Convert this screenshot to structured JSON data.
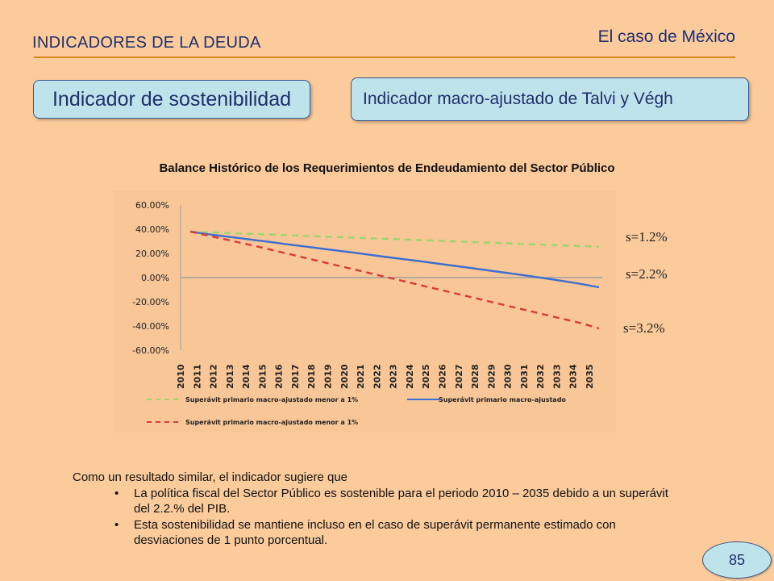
{
  "header": {
    "section_title": "INDICADORES DE LA DEUDA",
    "case_title": "El caso de México"
  },
  "pills": {
    "left": "Indicador de sostenibilidad",
    "right": "Indicador macro-ajustado de Talvi y Végh"
  },
  "chart_title": "Balance Histórico de los Requerimientos de Endeudamiento del Sector Público",
  "s_labels": {
    "top": "s=1.2%",
    "mid": "s=2.2%",
    "bottom": "s=3.2%"
  },
  "chart_data": {
    "type": "line",
    "x": [
      "2010",
      "2011",
      "2012",
      "2013",
      "2014",
      "2015",
      "2016",
      "2017",
      "2018",
      "2019",
      "2020",
      "2021",
      "2022",
      "2023",
      "2024",
      "2025",
      "2026",
      "2027",
      "2028",
      "2029",
      "2030",
      "2031",
      "2032",
      "2033",
      "2034",
      "2035"
    ],
    "y_ticks": [
      "60.00%",
      "40.00%",
      "20.00%",
      "0.00%",
      "-20.00%",
      "-40.00%",
      "-60.00%"
    ],
    "ylim": [
      -60,
      60
    ],
    "series": [
      {
        "name": "Superávit primario macro-ajustado menor a 1%",
        "color": "#9BD66B",
        "dash": true,
        "values": [
          38,
          37.5,
          37,
          36.5,
          36,
          35.5,
          35,
          34.5,
          34,
          33.5,
          33,
          32.5,
          32,
          31.5,
          31,
          30.5,
          30,
          29.5,
          29,
          28.5,
          28,
          27.5,
          27,
          26.5,
          26,
          25.5
        ]
      },
      {
        "name": "Superávit primario macro-ajustado",
        "color": "#3A6FD0",
        "dash": false,
        "values": [
          38,
          36,
          34.3,
          32.6,
          30.9,
          29.2,
          27.4,
          25.7,
          24,
          22.3,
          20.6,
          18.8,
          17,
          15.3,
          13.6,
          11.8,
          10,
          8.2,
          6.4,
          4.5,
          2.7,
          0.8,
          -1.2,
          -3.3,
          -5.5,
          -8
        ]
      },
      {
        "name": "Superávit primario macro-ajustado menor a 1%",
        "color": "#D93A3A",
        "dash": true,
        "values": [
          38,
          35,
          32,
          29,
          26,
          22.8,
          19.6,
          16.4,
          13.2,
          10,
          6.8,
          3.6,
          0.4,
          -2.8,
          -6,
          -9.2,
          -12.4,
          -15.6,
          -18.8,
          -22,
          -25.2,
          -28.4,
          -31.6,
          -34.8,
          -38,
          -42
        ]
      }
    ]
  },
  "paragraph": {
    "intro": "Como un resultado similar, el indicador sugiere que",
    "bullets": [
      "La política fiscal del Sector Público es sostenible para el periodo 2010 – 2035 debido a un superávit del 2.2.% del PIB.",
      "Esta sostenibilidad se mantiene incluso en el caso de superávit permanente estimado con desviaciones de 1 punto porcentual."
    ],
    "bullet_char": "•"
  },
  "page_number": "85"
}
